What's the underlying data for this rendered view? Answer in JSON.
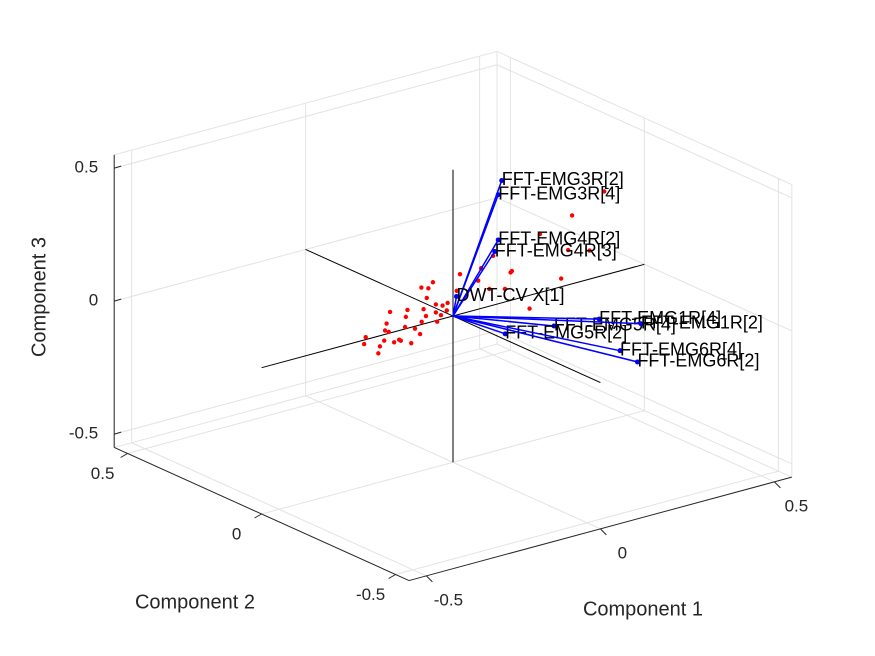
{
  "chart_data": {
    "type": "biplot3d",
    "xlabel": "Component 1",
    "ylabel": "Component 2",
    "zlabel": "Component 3",
    "xlim": [
      -0.55,
      0.55
    ],
    "ylim": [
      -0.55,
      0.55
    ],
    "zlim": [
      -0.55,
      0.55
    ],
    "xticks": [
      -0.5,
      0,
      0.5
    ],
    "yticks": [
      -0.5,
      0,
      0.5
    ],
    "zticks": [
      -0.5,
      0,
      0.5
    ],
    "grid": true,
    "vector_color": "#0000ff",
    "score_color": "#ff0000",
    "vectors": [
      {
        "name": "FFT-EMG3R[2]",
        "x": 0.14,
        "y": 0,
        "z": 0.46
      },
      {
        "name": "FFT-EMG3R[4]",
        "x": 0.13,
        "y": 0,
        "z": 0.41
      },
      {
        "name": "FFT-EMG4R[2]",
        "x": 0.13,
        "y": 0,
        "z": 0.24
      },
      {
        "name": "FFT-EMG4R[3]",
        "x": 0.12,
        "y": 0,
        "z": 0.2
      },
      {
        "name": "DWT-CV X[1]",
        "x": 0.01,
        "y": 0,
        "z": 0.07
      },
      {
        "name": "FFT-EMG5R[4]",
        "x": 0.29,
        "y": 0,
        "z": -0.14
      },
      {
        "name": "FFT-EMG1R[4]",
        "x": 0.42,
        "y": 0,
        "z": -0.16
      },
      {
        "name": "FFT-EMG1R[2]",
        "x": 0.54,
        "y": 0,
        "z": -0.22
      },
      {
        "name": "FFT-EMG5R[2]",
        "x": 0.15,
        "y": 0,
        "z": -0.12
      },
      {
        "name": "FFT-EMG6R[4]",
        "x": 0.48,
        "y": 0,
        "z": -0.3
      },
      {
        "name": "FFT-EMG6R[2]",
        "x": 0.53,
        "y": 0,
        "z": -0.36
      }
    ],
    "scores": {
      "x": [
        -0.24,
        -0.23,
        -0.22,
        -0.21,
        -0.2,
        -0.19,
        -0.18,
        -0.17,
        -0.16,
        -0.15,
        -0.14,
        -0.13,
        -0.12,
        -0.11,
        -0.1,
        -0.09,
        -0.08,
        -0.07,
        -0.06,
        -0.05,
        -0.04,
        -0.03,
        -0.02,
        -0.01,
        0,
        -0.2,
        -0.15,
        -0.12,
        -0.08,
        -0.05,
        -0.03,
        -0.1,
        -0.06,
        0.02,
        0.05,
        0.08,
        0.12,
        0.15,
        0.2,
        0.25,
        0.3,
        0.35,
        0.45,
        0.1,
        0.18,
        0.22,
        0.28,
        0.4
      ],
      "y": [
        0.02,
        -0.02,
        0.04,
        0,
        -0.04,
        0.01,
        0.02,
        -0.02,
        0.04,
        0,
        -0.04,
        0.01,
        0.02,
        -0.02,
        0.04,
        0,
        -0.04,
        0.01,
        0.02,
        -0.02,
        0.04,
        0,
        -0.04,
        0.01,
        0.02,
        -0.02,
        0.04,
        0,
        -0.04,
        0.01,
        0.02,
        -0.02,
        0.04,
        0,
        -0.04,
        0.01,
        0.02,
        -0.02,
        0.04,
        0,
        -0.04,
        0.01,
        0.02,
        -0.02,
        0.04,
        0,
        -0.04,
        0.01
      ],
      "z": [
        -0.03,
        -0.05,
        -0.02,
        -0.04,
        -0.01,
        -0.03,
        0,
        -0.02,
        0.01,
        -0.04,
        0.02,
        0,
        0.03,
        -0.02,
        0.04,
        0.01,
        0.06,
        0.02,
        0.08,
        0.03,
        0.1,
        0.05,
        0.12,
        0.02,
        0.04,
        0.02,
        0.05,
        -0.06,
        0.09,
        0.14,
        -0.02,
        0.07,
        0.11,
        0.15,
        0.18,
        0.1,
        0.05,
        0.12,
        0.08,
        0.22,
        0.16,
        0.25,
        0.3,
        0.2,
        0.02,
        -0.05,
        0.06,
        0.1
      ]
    }
  }
}
